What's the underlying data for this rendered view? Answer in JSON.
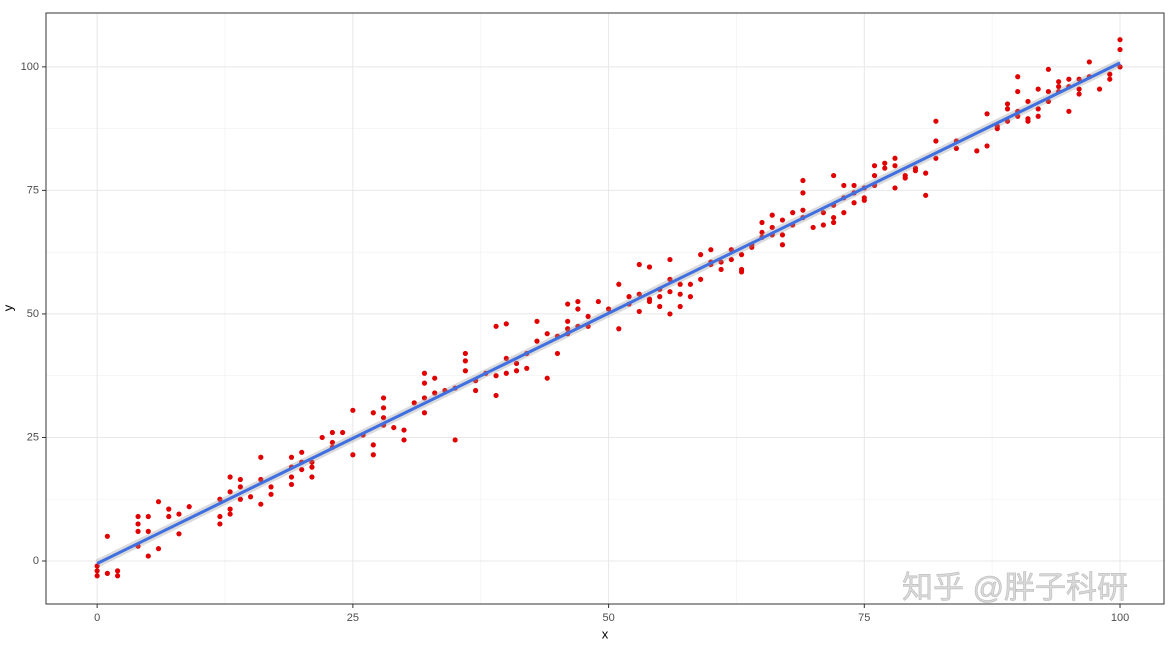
{
  "chart_data": {
    "type": "scatter",
    "x_label": "x",
    "y_label": "y",
    "annotation": "知乎 @胖子科研",
    "xlim": [
      -5,
      104.3
    ],
    "ylim": [
      -8.7,
      110.9
    ],
    "xticks": [
      0,
      25,
      50,
      75,
      100
    ],
    "yticks": [
      0,
      25,
      50,
      75,
      100
    ],
    "minor_xticks": [
      12.5,
      37.5,
      62.5,
      87.5
    ],
    "minor_yticks": [
      12.5,
      37.5,
      62.5,
      87.5
    ],
    "grid": true,
    "color": "#e00000",
    "x": [
      0,
      0,
      0,
      1,
      1,
      2,
      2,
      4,
      4,
      4,
      4,
      5,
      5,
      5,
      6,
      6,
      7,
      7,
      8,
      8,
      9,
      12,
      12,
      12,
      13,
      13,
      13,
      13,
      14,
      14,
      14,
      15,
      16,
      16,
      16,
      17,
      17,
      19,
      19,
      19,
      19,
      20,
      20,
      20,
      21,
      21,
      21,
      22,
      23,
      23,
      23,
      24,
      25,
      25,
      26,
      27,
      27,
      27,
      28,
      28,
      28,
      28,
      29,
      30,
      30,
      31,
      32,
      32,
      32,
      32,
      33,
      33,
      34,
      35,
      35,
      36,
      36,
      36,
      37,
      37,
      38,
      39,
      39,
      39,
      40,
      40,
      40,
      41,
      41,
      42,
      42,
      43,
      43,
      44,
      44,
      45,
      45,
      46,
      46,
      46,
      46,
      47,
      47,
      47,
      48,
      48,
      49,
      50,
      51,
      51,
      52,
      52,
      53,
      53,
      53,
      54,
      54,
      54,
      55,
      55,
      55,
      56,
      56,
      56,
      56,
      57,
      57,
      57,
      58,
      58,
      59,
      59,
      60,
      60,
      60,
      61,
      61,
      62,
      62,
      63,
      63,
      63,
      64,
      64,
      65,
      65,
      65,
      66,
      66,
      66,
      67,
      67,
      67,
      68,
      68,
      69,
      69,
      69,
      69,
      70,
      71,
      71,
      72,
      72,
      72,
      72,
      73,
      73,
      73,
      74,
      74,
      74,
      75,
      75,
      75,
      76,
      76,
      76,
      77,
      77,
      78,
      78,
      78,
      79,
      79,
      80,
      80,
      81,
      81,
      82,
      82,
      82,
      84,
      84,
      86,
      87,
      87,
      88,
      88,
      89,
      89,
      89,
      90,
      90,
      90,
      90,
      91,
      91,
      91,
      92,
      92,
      92,
      93,
      93,
      93,
      94,
      94,
      94,
      95,
      95,
      95,
      96,
      96,
      96,
      97,
      97,
      98,
      99,
      99,
      100,
      100,
      100
    ],
    "y": [
      -3,
      -2,
      -1,
      5,
      -2.5,
      -2,
      -3,
      9,
      7.5,
      6,
      3,
      9,
      6,
      1,
      12,
      2.5,
      10.5,
      9,
      9.5,
      5.5,
      11,
      12.5,
      9,
      7.5,
      17,
      14,
      10.5,
      9.5,
      16.5,
      15,
      12.5,
      13,
      21,
      16.5,
      11.5,
      15,
      13.5,
      21,
      19,
      17,
      15.5,
      22,
      20,
      18.5,
      20,
      19,
      17,
      25,
      26,
      24,
      23,
      26,
      30.5,
      21.5,
      25.5,
      30,
      23.5,
      21.5,
      33,
      31,
      29,
      27.5,
      27,
      26.5,
      24.5,
      32,
      38,
      36,
      33,
      30,
      37,
      34,
      34.5,
      35,
      24.5,
      42,
      40.5,
      38.5,
      36.5,
      34.5,
      38,
      47.5,
      37.5,
      33.5,
      48,
      41,
      38,
      40,
      38.5,
      42,
      39,
      48.5,
      44.5,
      46,
      37,
      45.5,
      42,
      52,
      48.5,
      47,
      46,
      52.5,
      51,
      47.5,
      49.5,
      47.5,
      52.5,
      51,
      56,
      47,
      53.5,
      52,
      60,
      54,
      50.5,
      59.5,
      53,
      52.5,
      55,
      53.5,
      51.5,
      61,
      57,
      54.5,
      50,
      56,
      54,
      51.5,
      56,
      53.5,
      62,
      57,
      63,
      60.5,
      60,
      60.5,
      59,
      63,
      61,
      62,
      59,
      58.5,
      64,
      63.5,
      68.5,
      66.5,
      65.5,
      70,
      67.5,
      66,
      69,
      66,
      64,
      70.5,
      68,
      77,
      74.5,
      71,
      69.5,
      67.5,
      70.5,
      68,
      78,
      72,
      69.5,
      68.5,
      76,
      73.5,
      70.5,
      76,
      74.5,
      72.5,
      75.5,
      73.5,
      73,
      80,
      78,
      76,
      80.5,
      79.5,
      81.5,
      80,
      75.5,
      78,
      77.5,
      79.5,
      79,
      78.5,
      74,
      89,
      85,
      81.5,
      85,
      83.5,
      83,
      90.5,
      84,
      88,
      87.5,
      92.5,
      91.5,
      89,
      98,
      95,
      91,
      90,
      93,
      89.5,
      89,
      95.5,
      91.5,
      90,
      99.5,
      95,
      93,
      97,
      96,
      95,
      97.5,
      96,
      91,
      97.5,
      95.5,
      94.5,
      101,
      98,
      95.5,
      98.5,
      97.5,
      105.5,
      103.5,
      100
    ],
    "fit": {
      "color": "#3f6fe0",
      "x": [
        0,
        100
      ],
      "y": [
        -0.5,
        100.8
      ]
    }
  }
}
